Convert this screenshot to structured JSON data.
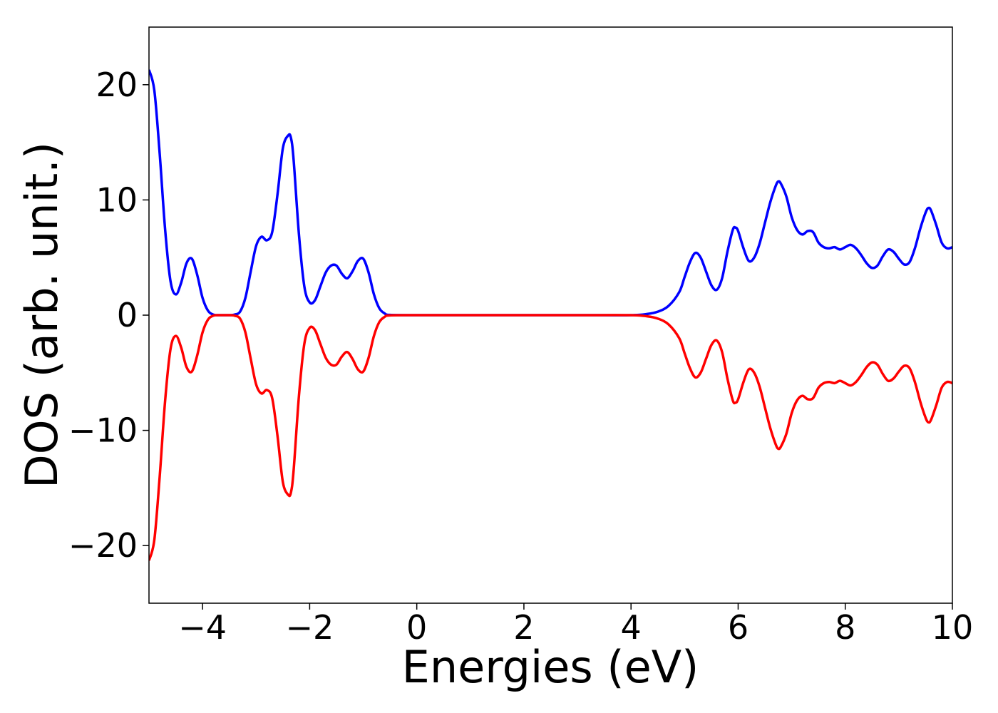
{
  "chart_data": {
    "type": "line",
    "title": "",
    "xlabel": "Energies (eV)",
    "ylabel": "DOS (arb. unit.)",
    "xlim": [
      -5,
      10
    ],
    "ylim": [
      -25,
      25
    ],
    "xticks": [
      -4,
      -2,
      0,
      2,
      4,
      6,
      8,
      10
    ],
    "yticks": [
      -20,
      -10,
      0,
      10,
      20
    ],
    "xtick_labels": [
      "−4",
      "−2",
      "0",
      "2",
      "4",
      "6",
      "8",
      "10"
    ],
    "ytick_labels": [
      "−20",
      "−10",
      "0",
      "10",
      "20"
    ],
    "grid": false,
    "legend": "none",
    "series": [
      {
        "color": "#0000ff",
        "x": [
          -5.0,
          -4.9,
          -4.8,
          -4.7,
          -4.6,
          -4.5,
          -4.4,
          -4.3,
          -4.2,
          -4.1,
          -4.0,
          -3.9,
          -3.8,
          -3.7,
          -3.6,
          -3.5,
          -3.4,
          -3.3,
          -3.2,
          -3.1,
          -3.0,
          -2.9,
          -2.8,
          -2.7,
          -2.6,
          -2.5,
          -2.4,
          -2.35,
          -2.3,
          -2.2,
          -2.1,
          -2.0,
          -1.9,
          -1.8,
          -1.7,
          -1.6,
          -1.5,
          -1.4,
          -1.3,
          -1.2,
          -1.1,
          -1.0,
          -0.9,
          -0.8,
          -0.7,
          -0.6,
          -0.5,
          0.0,
          1.0,
          2.0,
          3.0,
          4.0,
          4.3,
          4.5,
          4.7,
          4.9,
          5.0,
          5.1,
          5.2,
          5.3,
          5.4,
          5.5,
          5.6,
          5.7,
          5.8,
          5.9,
          5.95,
          6.0,
          6.1,
          6.2,
          6.3,
          6.4,
          6.5,
          6.6,
          6.7,
          6.75,
          6.8,
          6.9,
          7.0,
          7.1,
          7.2,
          7.3,
          7.4,
          7.5,
          7.6,
          7.7,
          7.8,
          7.9,
          8.0,
          8.1,
          8.2,
          8.3,
          8.4,
          8.5,
          8.6,
          8.7,
          8.8,
          8.9,
          9.0,
          9.1,
          9.2,
          9.3,
          9.4,
          9.5,
          9.55,
          9.6,
          9.7,
          9.8,
          9.9,
          10.0
        ],
        "y": [
          21.3,
          19.5,
          14.0,
          7.5,
          3.0,
          1.8,
          2.8,
          4.5,
          4.9,
          3.5,
          1.5,
          0.4,
          0.05,
          0.0,
          0.0,
          0.0,
          0.05,
          0.3,
          1.5,
          3.8,
          6.0,
          6.8,
          6.5,
          7.2,
          10.5,
          14.5,
          15.6,
          15.4,
          13.5,
          7.0,
          2.5,
          1.1,
          1.3,
          2.5,
          3.7,
          4.3,
          4.3,
          3.6,
          3.2,
          3.8,
          4.7,
          4.9,
          3.7,
          1.8,
          0.6,
          0.15,
          0.02,
          0.0,
          0.0,
          0.0,
          0.0,
          0.0,
          0.1,
          0.3,
          0.8,
          2.0,
          3.3,
          4.6,
          5.4,
          5.0,
          3.8,
          2.6,
          2.2,
          3.2,
          5.5,
          7.4,
          7.6,
          7.3,
          5.8,
          4.7,
          5.0,
          6.2,
          8.0,
          9.8,
          11.2,
          11.6,
          11.4,
          10.3,
          8.5,
          7.4,
          7.0,
          7.3,
          7.2,
          6.3,
          5.9,
          5.8,
          5.9,
          5.7,
          5.9,
          6.1,
          5.8,
          5.2,
          4.5,
          4.1,
          4.3,
          5.1,
          5.7,
          5.5,
          4.9,
          4.4,
          4.6,
          5.8,
          7.5,
          8.9,
          9.3,
          9.1,
          7.8,
          6.3,
          5.8,
          5.9
        ]
      },
      {
        "color": "#ff0000",
        "x": [
          -5.0,
          -4.9,
          -4.8,
          -4.7,
          -4.6,
          -4.5,
          -4.4,
          -4.3,
          -4.2,
          -4.1,
          -4.0,
          -3.9,
          -3.8,
          -3.7,
          -3.6,
          -3.5,
          -3.4,
          -3.3,
          -3.2,
          -3.1,
          -3.0,
          -2.9,
          -2.8,
          -2.7,
          -2.6,
          -2.5,
          -2.4,
          -2.35,
          -2.3,
          -2.2,
          -2.1,
          -2.0,
          -1.9,
          -1.8,
          -1.7,
          -1.6,
          -1.5,
          -1.4,
          -1.3,
          -1.2,
          -1.1,
          -1.0,
          -0.9,
          -0.8,
          -0.7,
          -0.6,
          -0.5,
          0.0,
          1.0,
          2.0,
          3.0,
          4.0,
          4.3,
          4.5,
          4.7,
          4.9,
          5.0,
          5.1,
          5.2,
          5.3,
          5.4,
          5.5,
          5.6,
          5.7,
          5.8,
          5.9,
          5.95,
          6.0,
          6.1,
          6.2,
          6.3,
          6.4,
          6.5,
          6.6,
          6.7,
          6.75,
          6.8,
          6.9,
          7.0,
          7.1,
          7.2,
          7.3,
          7.4,
          7.5,
          7.6,
          7.7,
          7.8,
          7.9,
          8.0,
          8.1,
          8.2,
          8.3,
          8.4,
          8.5,
          8.6,
          8.7,
          8.8,
          8.9,
          9.0,
          9.1,
          9.2,
          9.3,
          9.4,
          9.5,
          9.55,
          9.6,
          9.7,
          9.8,
          9.9,
          10.0
        ],
        "y": [
          -21.3,
          -19.5,
          -14.0,
          -7.5,
          -3.0,
          -1.8,
          -2.8,
          -4.5,
          -4.9,
          -3.5,
          -1.5,
          -0.4,
          -0.05,
          0.0,
          0.0,
          0.0,
          -0.05,
          -0.3,
          -1.5,
          -3.8,
          -6.0,
          -6.8,
          -6.5,
          -7.2,
          -10.5,
          -14.5,
          -15.6,
          -15.4,
          -13.5,
          -7.0,
          -2.5,
          -1.1,
          -1.3,
          -2.5,
          -3.7,
          -4.3,
          -4.3,
          -3.6,
          -3.2,
          -3.8,
          -4.7,
          -4.9,
          -3.7,
          -1.8,
          -0.6,
          -0.15,
          -0.02,
          0.0,
          0.0,
          0.0,
          0.0,
          0.0,
          -0.1,
          -0.3,
          -0.8,
          -2.0,
          -3.3,
          -4.6,
          -5.4,
          -5.0,
          -3.8,
          -2.6,
          -2.2,
          -3.2,
          -5.5,
          -7.4,
          -7.6,
          -7.3,
          -5.8,
          -4.7,
          -5.0,
          -6.2,
          -8.0,
          -9.8,
          -11.2,
          -11.6,
          -11.4,
          -10.3,
          -8.5,
          -7.4,
          -7.0,
          -7.3,
          -7.2,
          -6.3,
          -5.9,
          -5.8,
          -5.9,
          -5.7,
          -5.9,
          -6.1,
          -5.8,
          -5.2,
          -4.5,
          -4.1,
          -4.3,
          -5.1,
          -5.7,
          -5.5,
          -4.9,
          -4.4,
          -4.6,
          -5.8,
          -7.5,
          -8.9,
          -9.3,
          -9.1,
          -7.8,
          -6.3,
          -5.8,
          -5.9
        ]
      }
    ]
  }
}
